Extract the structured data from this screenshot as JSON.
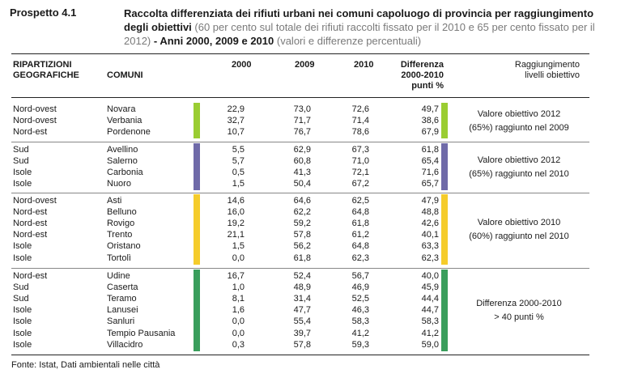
{
  "prospetto": "Prospetto 4.1",
  "title": {
    "bold_1": "Raccolta differenziata dei rifiuti urbani nei comuni capoluogo di provincia per raggiungimento degli obiettivi",
    "grey_1": " (60 per cento sul totale dei rifiuti raccolti fissato per il 2010 e 65 per cento fissato per il 2012)",
    "bold_2": " - Anni 2000, 2009 e 2010",
    "grey_2": " (valori e differenze percentuali)"
  },
  "headers": {
    "ripartizioni_1": "RIPARTIZIONI",
    "ripartizioni_2": "GEOGRAFICHE",
    "comuni": "COMUNI",
    "y2000": "2000",
    "y2009": "2009",
    "y2010": "2010",
    "diff_1": "Differenza",
    "diff_2": "2000-2010",
    "diff_3": "punti %",
    "ragg_1": "Raggiungimento",
    "ragg_2": "livelli obiettivo"
  },
  "groups": [
    {
      "color": "#9acd32",
      "note_1": "Valore obiettivo 2012",
      "note_2": "(65%) raggiunto nel 2009",
      "rows": [
        {
          "rip": "Nord-ovest",
          "comune": "Novara",
          "v2000": "22,9",
          "v2009": "73,0",
          "v2010": "72,6",
          "diff": "49,7"
        },
        {
          "rip": "Nord-ovest",
          "comune": "Verbania",
          "v2000": "32,7",
          "v2009": "71,7",
          "v2010": "71,4",
          "diff": "38,6"
        },
        {
          "rip": "Nord-est",
          "comune": "Pordenone",
          "v2000": "10,7",
          "v2009": "76,7",
          "v2010": "78,6",
          "diff": "67,9"
        }
      ]
    },
    {
      "color": "#6f6aa8",
      "note_1": "Valore obiettivo 2012",
      "note_2": "(65%) raggiunto nel 2010",
      "rows": [
        {
          "rip": "Sud",
          "comune": "Avellino",
          "v2000": "5,5",
          "v2009": "62,9",
          "v2010": "67,3",
          "diff": "61,8"
        },
        {
          "rip": "Sud",
          "comune": "Salerno",
          "v2000": "5,7",
          "v2009": "60,8",
          "v2010": "71,0",
          "diff": "65,4"
        },
        {
          "rip": "Isole",
          "comune": "Carbonia",
          "v2000": "0,5",
          "v2009": "41,3",
          "v2010": "72,1",
          "diff": "71,6"
        },
        {
          "rip": "Isole",
          "comune": "Nuoro",
          "v2000": "1,5",
          "v2009": "50,4",
          "v2010": "67,2",
          "diff": "65,7"
        }
      ]
    },
    {
      "color": "#f5cc2b",
      "note_1": "Valore obiettivo 2010",
      "note_2": "(60%) raggiunto nel 2010",
      "rows": [
        {
          "rip": "Nord-ovest",
          "comune": "Asti",
          "v2000": "14,6",
          "v2009": "64,6",
          "v2010": "62,5",
          "diff": "47,9"
        },
        {
          "rip": "Nord-est",
          "comune": "Belluno",
          "v2000": "16,0",
          "v2009": "62,2",
          "v2010": "64,8",
          "diff": "48,8"
        },
        {
          "rip": "Nord-est",
          "comune": "Rovigo",
          "v2000": "19,2",
          "v2009": "59,2",
          "v2010": "61,8",
          "diff": "42,6"
        },
        {
          "rip": "Nord-est",
          "comune": "Trento",
          "v2000": "21,1",
          "v2009": "57,8",
          "v2010": "61,2",
          "diff": "40,1"
        },
        {
          "rip": "Isole",
          "comune": "Oristano",
          "v2000": "1,5",
          "v2009": "56,2",
          "v2010": "64,8",
          "diff": "63,3"
        },
        {
          "rip": "Isole",
          "comune": "Tortolì",
          "v2000": "0,0",
          "v2009": "61,8",
          "v2010": "62,3",
          "diff": "62,3"
        }
      ]
    },
    {
      "color": "#3a9e5c",
      "note_1": "Differenza 2000-2010",
      "note_2": "> 40 punti %",
      "rows": [
        {
          "rip": "Nord-est",
          "comune": "Udine",
          "v2000": "16,7",
          "v2009": "52,4",
          "v2010": "56,7",
          "diff": "40,0"
        },
        {
          "rip": "Sud",
          "comune": "Caserta",
          "v2000": "1,0",
          "v2009": "48,9",
          "v2010": "46,9",
          "diff": "45,9"
        },
        {
          "rip": "Sud",
          "comune": "Teramo",
          "v2000": "8,1",
          "v2009": "31,4",
          "v2010": "52,5",
          "diff": "44,4"
        },
        {
          "rip": "Isole",
          "comune": "Lanusei",
          "v2000": "1,6",
          "v2009": "47,7",
          "v2010": "46,3",
          "diff": "44,7"
        },
        {
          "rip": "Isole",
          "comune": "Sanluri",
          "v2000": "0,0",
          "v2009": "55,4",
          "v2010": "58,3",
          "diff": "58,3"
        },
        {
          "rip": "Isole",
          "comune": "Tempio Pausania",
          "v2000": "0,0",
          "v2009": "39,7",
          "v2010": "41,2",
          "diff": "41,2"
        },
        {
          "rip": "Isole",
          "comune": "Villacidro",
          "v2000": "0,3",
          "v2009": "57,8",
          "v2010": "59,3",
          "diff": "59,0"
        }
      ]
    }
  ],
  "footer": "Fonte: Istat, Dati ambientali nelle città"
}
